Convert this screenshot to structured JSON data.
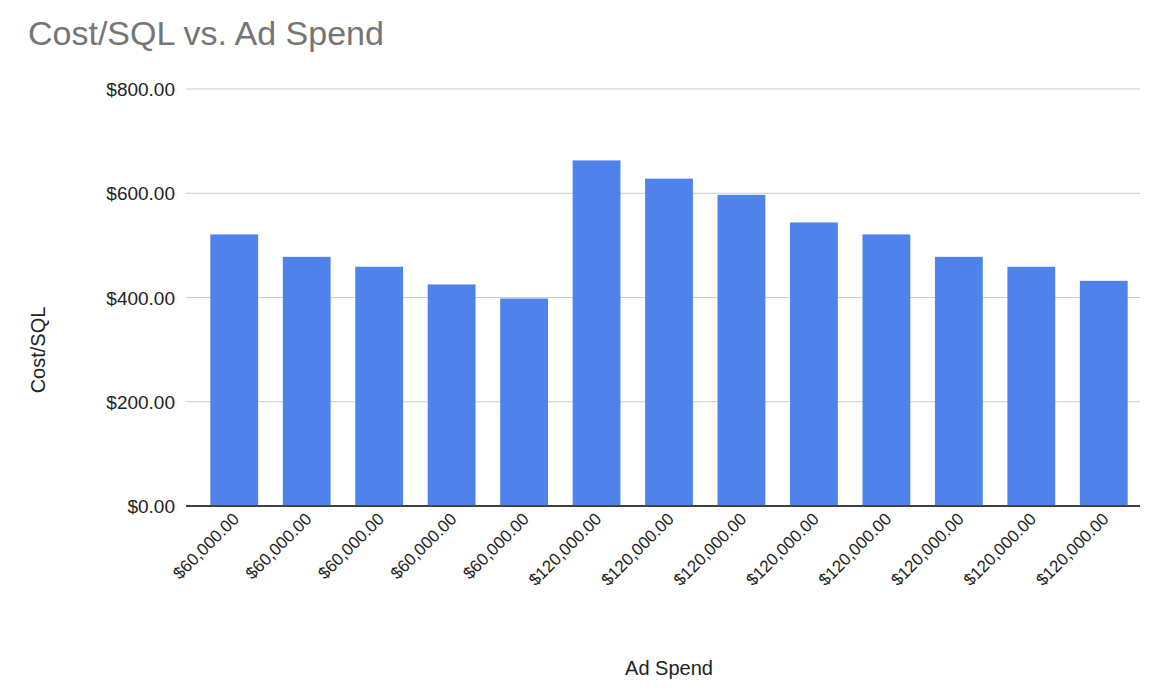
{
  "chart_data": {
    "type": "bar",
    "title": "Cost/SQL vs. Ad Spend",
    "x_label": "Ad Spend",
    "y_label": "Cost/SQL",
    "categories": [
      "$60,000.00",
      "$60,000.00",
      "$60,000.00",
      "$60,000.00",
      "$60,000.00",
      "$120,000.00",
      "$120,000.00",
      "$120,000.00",
      "$120,000.00",
      "$120,000.00",
      "$120,000.00",
      "$120,000.00",
      "$120,000.00"
    ],
    "values": [
      521,
      478,
      459,
      425,
      398,
      663,
      628,
      597,
      544,
      521,
      478,
      459,
      432
    ],
    "color": "#4f83eb",
    "ylim": [
      0,
      800
    ],
    "yticks": [
      {
        "value": 0,
        "label": "$0.00"
      },
      {
        "value": 200,
        "label": "$200.00"
      },
      {
        "value": 400,
        "label": "$400.00"
      },
      {
        "value": 600,
        "label": "$600.00"
      },
      {
        "value": 800,
        "label": "$800.00"
      }
    ],
    "grid": true
  }
}
